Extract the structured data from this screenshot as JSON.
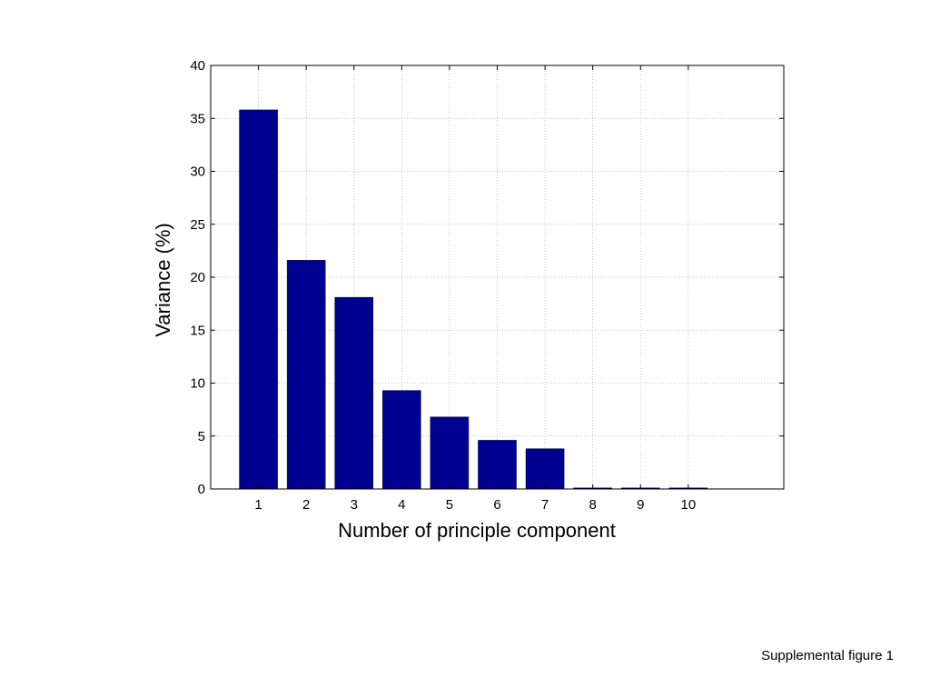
{
  "chart_data": {
    "type": "bar",
    "categories": [
      "1",
      "2",
      "3",
      "4",
      "5",
      "6",
      "7",
      "8",
      "9",
      "10"
    ],
    "values": [
      35.8,
      21.6,
      18.1,
      9.3,
      6.8,
      4.6,
      3.8,
      0.1,
      0.1,
      0.1
    ],
    "xlabel": "Number of principle component",
    "ylabel": "Variance (%)",
    "ylim": [
      0,
      40
    ],
    "xlim": [
      0,
      12
    ],
    "yticks": [
      0,
      5,
      10,
      15,
      20,
      25,
      30,
      35,
      40
    ],
    "grid": true,
    "bar_color": "#000090"
  },
  "caption": "Supplemental figure 1"
}
